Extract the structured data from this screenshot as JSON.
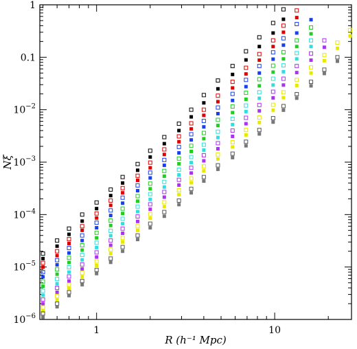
{
  "chart_data": {
    "type": "scatter",
    "title": "",
    "xlabel": "R (h⁻¹ Mpc)",
    "ylabel": "Nξ",
    "xscale": "log",
    "yscale": "log",
    "xlim": [
      0.48,
      27
    ],
    "ylim": [
      1e-06,
      1
    ],
    "grid": false,
    "legend": "none",
    "x_ticks": [
      {
        "value": 1,
        "label": "1"
      },
      {
        "value": 10,
        "label": "10"
      }
    ],
    "y_ticks": [
      {
        "value": 1e-06,
        "label": "10",
        "exp": "-6"
      },
      {
        "value": 1e-05,
        "label": "10",
        "exp": "-5"
      },
      {
        "value": 0.0001,
        "label": "10",
        "exp": "-4"
      },
      {
        "value": 0.001,
        "label": "10",
        "exp": "-3"
      },
      {
        "value": 0.01,
        "label": "10",
        "exp": "-2"
      },
      {
        "value": 0.1,
        "label": "0.1",
        "exp": ""
      },
      {
        "value": 1,
        "label": "1",
        "exp": ""
      }
    ],
    "series": [
      {
        "color": "#000000",
        "marker": "square-open",
        "x": [
          0.5,
          0.6,
          0.7,
          0.83,
          1.0,
          1.2,
          1.4,
          1.7,
          2.0,
          2.4,
          2.9,
          3.4,
          4.0,
          4.8,
          5.8,
          6.9,
          8.2,
          9.8,
          11.2
        ],
        "y": [
          1.8e-05,
          3.2e-05,
          5.4e-05,
          0.0001,
          0.00017,
          0.0003,
          0.00052,
          0.00092,
          0.00165,
          0.003,
          0.0054,
          0.01,
          0.019,
          0.036,
          0.068,
          0.13,
          0.24,
          0.45,
          0.82
        ]
      },
      {
        "color": "#000000",
        "marker": "square-filled",
        "x": [
          0.5,
          0.6,
          0.7,
          0.83,
          1.0,
          1.2,
          1.4,
          1.7,
          2.0,
          2.4,
          2.9,
          3.4,
          4.0,
          4.8,
          5.8,
          6.9,
          8.2,
          9.8,
          11.2
        ],
        "y": [
          1.45e-05,
          2.5e-05,
          4.2e-05,
          7.5e-05,
          0.00013,
          0.00023,
          0.0004,
          0.0007,
          0.00125,
          0.00225,
          0.004,
          0.0073,
          0.0135,
          0.025,
          0.047,
          0.089,
          0.16,
          0.29,
          0.53
        ]
      },
      {
        "color": "#dd0000",
        "marker": "square-open",
        "x": [
          0.5,
          0.6,
          0.7,
          0.83,
          1.0,
          1.2,
          1.4,
          1.7,
          2.0,
          2.4,
          2.9,
          3.4,
          4.0,
          4.8,
          5.8,
          6.9,
          8.2,
          9.8,
          11.2,
          13.3
        ],
        "y": [
          1.2e-05,
          2e-05,
          3.4e-05,
          6e-05,
          0.000105,
          0.000185,
          0.00032,
          0.00055,
          0.00098,
          0.00175,
          0.0031,
          0.0055,
          0.01,
          0.0185,
          0.034,
          0.063,
          0.115,
          0.21,
          0.4,
          0.78
        ]
      },
      {
        "color": "#dd0000",
        "marker": "square-filled",
        "x": [
          0.5,
          0.6,
          0.7,
          0.83,
          1.0,
          1.2,
          1.4,
          1.7,
          2.0,
          2.4,
          2.9,
          3.4,
          4.0,
          4.8,
          5.8,
          6.9,
          8.2,
          9.8,
          11.2,
          13.3
        ],
        "y": [
          1e-05,
          1.65e-05,
          2.8e-05,
          5e-05,
          8.6e-05,
          0.00015,
          0.00026,
          0.00045,
          0.00078,
          0.0014,
          0.00245,
          0.0043,
          0.0078,
          0.0142,
          0.026,
          0.048,
          0.088,
          0.16,
          0.3,
          0.57
        ]
      },
      {
        "color": "#1a3fe8",
        "marker": "square-open",
        "x": [
          0.5,
          0.6,
          0.7,
          0.83,
          1.0,
          1.2,
          1.4,
          1.7,
          2.0,
          2.4,
          2.9,
          3.4,
          4.0,
          4.8,
          5.8,
          6.9,
          8.2,
          9.8,
          11.2,
          13.3
        ],
        "y": [
          8e-06,
          1.35e-05,
          2.3e-05,
          4e-05,
          7e-05,
          0.00012,
          0.00021,
          0.00036,
          0.00063,
          0.0011,
          0.00195,
          0.0034,
          0.0061,
          0.011,
          0.02,
          0.037,
          0.068,
          0.124,
          0.23,
          0.43
        ]
      },
      {
        "color": "#1a3fe8",
        "marker": "square-filled",
        "x": [
          0.5,
          0.6,
          0.7,
          0.83,
          1.0,
          1.2,
          1.4,
          1.7,
          2.0,
          2.4,
          2.9,
          3.4,
          4.0,
          4.8,
          5.8,
          6.9,
          8.2,
          9.8,
          11.2,
          13.3,
          16.0
        ],
        "y": [
          6.5e-06,
          1.1e-05,
          1.85e-05,
          3.2e-05,
          5.6e-05,
          9.6e-05,
          0.000165,
          0.000285,
          0.0005,
          0.00087,
          0.0015,
          0.00265,
          0.0047,
          0.0084,
          0.015,
          0.0275,
          0.05,
          0.092,
          0.17,
          0.29,
          0.52
        ]
      },
      {
        "color": "#22cc22",
        "marker": "square-open",
        "x": [
          0.5,
          0.6,
          0.7,
          0.83,
          1.0,
          1.2,
          1.4,
          1.7,
          2.0,
          2.4,
          2.9,
          3.4,
          4.0,
          4.8,
          5.8,
          6.9,
          8.2,
          9.8,
          11.2,
          13.3,
          16.0
        ],
        "y": [
          5.3e-06,
          9e-06,
          1.5e-05,
          2.6e-05,
          4.5e-05,
          7.7e-05,
          0.00013,
          0.000225,
          0.00039,
          0.00068,
          0.00117,
          0.00205,
          0.0036,
          0.0064,
          0.0115,
          0.021,
          0.038,
          0.069,
          0.125,
          0.21,
          0.37
        ]
      },
      {
        "color": "#22cc22",
        "marker": "square-filled",
        "x": [
          0.5,
          0.6,
          0.7,
          0.83,
          1.0,
          1.2,
          1.4,
          1.7,
          2.0,
          2.4,
          2.9,
          3.4,
          4.0,
          4.8,
          5.8,
          6.9,
          8.2,
          9.8,
          11.2,
          13.3,
          16.0
        ],
        "y": [
          4.3e-06,
          7.3e-06,
          1.22e-05,
          2.1e-05,
          3.6e-05,
          6.2e-05,
          0.000105,
          0.00018,
          0.00031,
          0.00054,
          0.00093,
          0.0016,
          0.0028,
          0.005,
          0.0088,
          0.0158,
          0.0285,
          0.052,
          0.093,
          0.16,
          0.28
        ]
      },
      {
        "color": "#33dddd",
        "marker": "square-open",
        "x": [
          0.5,
          0.6,
          0.7,
          0.83,
          1.0,
          1.2,
          1.4,
          1.7,
          2.0,
          2.4,
          2.9,
          3.4,
          4.0,
          4.8,
          5.8,
          6.9,
          8.2,
          9.8,
          11.2,
          13.3,
          16.0
        ],
        "y": [
          3.5e-06,
          5.9e-06,
          9.9e-06,
          1.7e-05,
          2.9e-05,
          4.9e-05,
          8.3e-05,
          0.000142,
          0.000245,
          0.00042,
          0.00072,
          0.00125,
          0.00215,
          0.0038,
          0.0067,
          0.012,
          0.0215,
          0.039,
          0.07,
          0.12,
          0.21
        ]
      },
      {
        "color": "#33dddd",
        "marker": "square-filled",
        "x": [
          0.5,
          0.6,
          0.7,
          0.83,
          1.0,
          1.2,
          1.4,
          1.7,
          2.0,
          2.4,
          2.9,
          3.4,
          4.0,
          4.8,
          5.8,
          6.9,
          8.2,
          9.8,
          11.2,
          13.3,
          16.0
        ],
        "y": [
          2.9e-06,
          4.8e-06,
          8e-06,
          1.37e-05,
          2.35e-05,
          3.95e-05,
          6.7e-05,
          0.000114,
          0.000195,
          0.000335,
          0.00057,
          0.00098,
          0.0017,
          0.00295,
          0.0052,
          0.0092,
          0.0165,
          0.0295,
          0.053,
          0.093,
          0.16
        ]
      },
      {
        "color": "#aa33ee",
        "marker": "square-open",
        "x": [
          0.5,
          0.6,
          0.7,
          0.83,
          1.0,
          1.2,
          1.4,
          1.7,
          2.0,
          2.4,
          2.9,
          3.4,
          4.0,
          4.8,
          5.8,
          6.9,
          8.2,
          9.8,
          11.2,
          13.3,
          16.0,
          19.0
        ],
        "y": [
          2.4e-06,
          4e-06,
          6.6e-06,
          1.12e-05,
          1.9e-05,
          3.2e-05,
          5.4e-05,
          9.2e-05,
          0.000157,
          0.00027,
          0.00046,
          0.00078,
          0.00135,
          0.0023,
          0.004,
          0.007,
          0.0123,
          0.022,
          0.039,
          0.068,
          0.118,
          0.21
        ]
      },
      {
        "color": "#aa33ee",
        "marker": "square-filled",
        "x": [
          0.5,
          0.6,
          0.7,
          0.83,
          1.0,
          1.2,
          1.4,
          1.7,
          2.0,
          2.4,
          2.9,
          3.4,
          4.0,
          4.8,
          5.8,
          6.9,
          8.2,
          9.8,
          11.2,
          13.3,
          16.0,
          19.0
        ],
        "y": [
          2e-06,
          3.3e-06,
          5.4e-06,
          9.2e-06,
          1.55e-05,
          2.6e-05,
          4.4e-05,
          7.4e-05,
          0.000126,
          0.000215,
          0.000365,
          0.00062,
          0.00106,
          0.0018,
          0.0031,
          0.0054,
          0.0095,
          0.0168,
          0.0295,
          0.051,
          0.088,
          0.155
        ]
      },
      {
        "color": "#e8e800",
        "marker": "square-open",
        "x": [
          0.5,
          0.6,
          0.7,
          0.83,
          1.0,
          1.2,
          1.4,
          1.7,
          2.0,
          2.4,
          2.9,
          3.4,
          4.0,
          4.8,
          5.8,
          6.9,
          8.2,
          9.8,
          11.2,
          13.3,
          16.0,
          19.0,
          22.5,
          26.5
        ],
        "y": [
          1.7e-06,
          2.8e-06,
          4.6e-06,
          7.7e-06,
          1.28e-05,
          2.15e-05,
          3.6e-05,
          6e-05,
          0.000102,
          0.000172,
          0.00029,
          0.00049,
          0.00083,
          0.0014,
          0.0024,
          0.0041,
          0.0071,
          0.0124,
          0.0215,
          0.037,
          0.064,
          0.11,
          0.19,
          0.33
        ]
      },
      {
        "color": "#e8e800",
        "marker": "square-filled",
        "x": [
          0.5,
          0.6,
          0.7,
          0.83,
          1.0,
          1.2,
          1.4,
          1.7,
          2.0,
          2.4,
          2.9,
          3.4,
          4.0,
          4.8,
          5.8,
          6.9,
          8.2,
          9.8,
          11.2,
          13.3,
          16.0,
          19.0,
          22.5,
          26.5
        ],
        "y": [
          1.45e-06,
          2.35e-06,
          3.9e-06,
          6.5e-06,
          1.07e-05,
          1.8e-05,
          3e-05,
          5e-05,
          8.5e-05,
          0.000142,
          0.00024,
          0.000405,
          0.00068,
          0.00115,
          0.00195,
          0.0033,
          0.0057,
          0.0098,
          0.017,
          0.029,
          0.05,
          0.086,
          0.148,
          0.255
        ]
      },
      {
        "color": "#555555",
        "marker": "square-open",
        "x": [
          0.5,
          0.6,
          0.7,
          0.83,
          1.0,
          1.2,
          1.4,
          1.7,
          2.0,
          2.4,
          2.9,
          3.4,
          4.0,
          4.8,
          5.8,
          6.9,
          8.2,
          9.8,
          11.2,
          13.3,
          16.0,
          19.0,
          22.5
        ],
        "y": [
          1.3e-06,
          2e-06,
          3.3e-06,
          5.4e-06,
          8.8e-06,
          1.45e-05,
          2.4e-05,
          4e-05,
          6.7e-05,
          0.000112,
          0.000185,
          0.00031,
          0.00052,
          0.00087,
          0.00145,
          0.00245,
          0.0041,
          0.0069,
          0.0117,
          0.0198,
          0.034,
          0.058,
          0.1
        ]
      },
      {
        "color": "#777777",
        "marker": "square-filled",
        "x": [
          0.5,
          0.6,
          0.7,
          0.83,
          1.0,
          1.2,
          1.4,
          1.7,
          2.0,
          2.4,
          2.9,
          3.4,
          4.0,
          4.8,
          5.8,
          6.9,
          8.2,
          9.8,
          11.2,
          13.3,
          16.0,
          19.0,
          22.5
        ],
        "y": [
          1.1e-06,
          1.75e-06,
          2.85e-06,
          4.6e-06,
          7.5e-06,
          1.23e-05,
          2e-05,
          3.35e-05,
          5.6e-05,
          9.3e-05,
          0.000155,
          0.00026,
          0.000435,
          0.00073,
          0.00122,
          0.00205,
          0.00345,
          0.0058,
          0.0098,
          0.0166,
          0.0285,
          0.049,
          0.084
        ]
      }
    ]
  }
}
